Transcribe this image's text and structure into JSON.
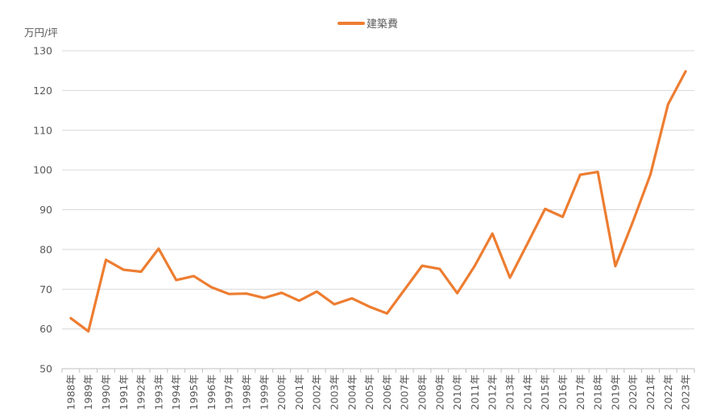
{
  "chart_data": {
    "type": "line",
    "ylabel": "万円/坪",
    "ylim": [
      50,
      130
    ],
    "y_ticks": [
      50,
      60,
      70,
      80,
      90,
      100,
      110,
      120,
      130
    ],
    "grid": true,
    "legend_position": "top",
    "categories": [
      "1988年",
      "1989年",
      "1990年",
      "1991年",
      "1992年",
      "1993年",
      "1994年",
      "1995年",
      "1996年",
      "1997年",
      "1998年",
      "1999年",
      "2000年",
      "2001年",
      "2002年",
      "2003年",
      "2004年",
      "2005年",
      "2006年",
      "2007年",
      "2008年",
      "2009年",
      "2010年",
      "2011年",
      "2012年",
      "2013年",
      "2014年",
      "2015年",
      "2016年",
      "2017年",
      "2018年",
      "2019年",
      "2020年",
      "2021年",
      "2022年",
      "2023年"
    ],
    "series": [
      {
        "name": "建築費",
        "color": "#ED7D31",
        "values": [
          62.7,
          59.4,
          77.4,
          74.9,
          74.4,
          80.2,
          72.3,
          73.3,
          70.5,
          68.8,
          68.9,
          67.8,
          69.1,
          67.1,
          69.4,
          66.2,
          67.7,
          65.6,
          63.9,
          69.9,
          75.9,
          75.1,
          69.0,
          75.9,
          84.0,
          72.9,
          81.5,
          90.2,
          88.2,
          98.8,
          99.5,
          75.8,
          87.0,
          98.9,
          116.5,
          124.8
        ]
      }
    ]
  },
  "colors": {
    "grid": "#d9d9d9",
    "axis": "#bfbfbf",
    "text": "#595959"
  }
}
